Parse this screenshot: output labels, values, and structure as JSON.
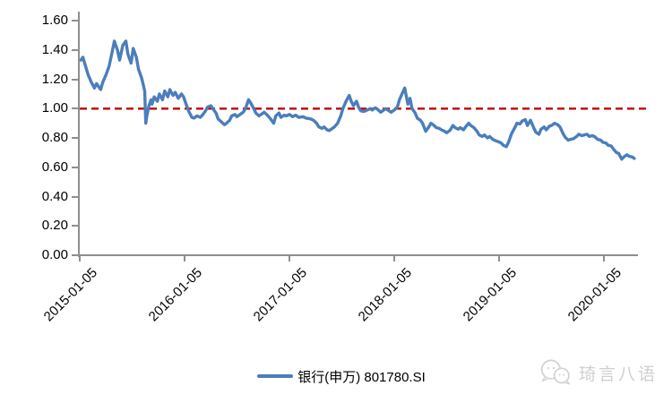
{
  "page": {
    "background": "#ffffff"
  },
  "chart_data": {
    "type": "line",
    "title": "",
    "xlabel": "",
    "ylabel": "",
    "ylim": [
      0.0,
      1.6
    ],
    "xlim_years_from_2015_01_05": [
      0.0,
      5.32
    ],
    "grid": "off",
    "legend_position": "bottom-center",
    "axis_color": "#8f8f8f",
    "y_axis": {
      "ticks": [
        {
          "label": "1.60",
          "value": 1.6
        },
        {
          "label": "1.40",
          "value": 1.4
        },
        {
          "label": "1.20",
          "value": 1.2
        },
        {
          "label": "1.00",
          "value": 1.0
        },
        {
          "label": "0.80",
          "value": 0.8
        },
        {
          "label": "0.60",
          "value": 0.6
        },
        {
          "label": "0.40",
          "value": 0.4
        },
        {
          "label": "0.20",
          "value": 0.2
        },
        {
          "label": "0.00",
          "value": 0.0
        }
      ]
    },
    "x_axis": {
      "ticks": [
        {
          "label": "2015-01-05",
          "t": 0
        },
        {
          "label": "2016-01-05",
          "t": 1
        },
        {
          "label": "2017-01-05",
          "t": 2
        },
        {
          "label": "2018-01-05",
          "t": 3
        },
        {
          "label": "2019-01-05",
          "t": 4
        },
        {
          "label": "2020-01-05",
          "t": 5
        }
      ]
    },
    "reference_line": {
      "value": 1.0,
      "color": "#c00000",
      "style": "dashed"
    },
    "series": [
      {
        "name": "银行(申万) 801780.SI",
        "color": "#4a7ebc",
        "points": [
          [
            0.01,
            1.33
          ],
          [
            0.03,
            1.35
          ],
          [
            0.08,
            1.23
          ],
          [
            0.11,
            1.18
          ],
          [
            0.14,
            1.14
          ],
          [
            0.16,
            1.17
          ],
          [
            0.2,
            1.13
          ],
          [
            0.22,
            1.18
          ],
          [
            0.25,
            1.23
          ],
          [
            0.28,
            1.29
          ],
          [
            0.31,
            1.39
          ],
          [
            0.33,
            1.46
          ],
          [
            0.36,
            1.4
          ],
          [
            0.38,
            1.33
          ],
          [
            0.41,
            1.43
          ],
          [
            0.44,
            1.46
          ],
          [
            0.46,
            1.37
          ],
          [
            0.49,
            1.31
          ],
          [
            0.51,
            1.41
          ],
          [
            0.54,
            1.35
          ],
          [
            0.56,
            1.27
          ],
          [
            0.59,
            1.21
          ],
          [
            0.61,
            1.15
          ],
          [
            0.62,
            1.12
          ],
          [
            0.63,
            0.9
          ],
          [
            0.64,
            0.95
          ],
          [
            0.66,
            1.02
          ],
          [
            0.68,
            1.06
          ],
          [
            0.69,
            1.03
          ],
          [
            0.71,
            1.08
          ],
          [
            0.74,
            1.05
          ],
          [
            0.76,
            1.1
          ],
          [
            0.79,
            1.06
          ],
          [
            0.81,
            1.12
          ],
          [
            0.84,
            1.08
          ],
          [
            0.86,
            1.13
          ],
          [
            0.89,
            1.09
          ],
          [
            0.91,
            1.11
          ],
          [
            0.94,
            1.07
          ],
          [
            0.97,
            1.1
          ],
          [
            0.99,
            1.08
          ],
          [
            1.02,
            1.02
          ],
          [
            1.04,
            0.98
          ],
          [
            1.07,
            0.94
          ],
          [
            1.09,
            0.935
          ],
          [
            1.12,
            0.95
          ],
          [
            1.15,
            0.94
          ],
          [
            1.17,
            0.955
          ],
          [
            1.2,
            0.985
          ],
          [
            1.22,
            1.01
          ],
          [
            1.25,
            1.02
          ],
          [
            1.27,
            1.0
          ],
          [
            1.3,
            0.97
          ],
          [
            1.32,
            0.93
          ],
          [
            1.35,
            0.91
          ],
          [
            1.38,
            0.89
          ],
          [
            1.4,
            0.9
          ],
          [
            1.43,
            0.92
          ],
          [
            1.45,
            0.95
          ],
          [
            1.48,
            0.96
          ],
          [
            1.5,
            0.945
          ],
          [
            1.53,
            0.96
          ],
          [
            1.56,
            0.975
          ],
          [
            1.58,
            1.0
          ],
          [
            1.61,
            1.06
          ],
          [
            1.63,
            1.04
          ],
          [
            1.66,
            1.0
          ],
          [
            1.68,
            0.97
          ],
          [
            1.71,
            0.95
          ],
          [
            1.74,
            0.965
          ],
          [
            1.76,
            0.975
          ],
          [
            1.79,
            0.955
          ],
          [
            1.82,
            0.93
          ],
          [
            1.85,
            0.9
          ],
          [
            1.87,
            0.95
          ],
          [
            1.9,
            0.97
          ],
          [
            1.92,
            0.94
          ],
          [
            1.95,
            0.955
          ],
          [
            1.97,
            0.95
          ],
          [
            2.0,
            0.96
          ],
          [
            2.03,
            0.945
          ],
          [
            2.06,
            0.955
          ],
          [
            2.09,
            0.94
          ],
          [
            2.13,
            0.945
          ],
          [
            2.16,
            0.935
          ],
          [
            2.2,
            0.93
          ],
          [
            2.23,
            0.92
          ],
          [
            2.26,
            0.9
          ],
          [
            2.28,
            0.875
          ],
          [
            2.31,
            0.865
          ],
          [
            2.33,
            0.875
          ],
          [
            2.36,
            0.855
          ],
          [
            2.38,
            0.85
          ],
          [
            2.4,
            0.86
          ],
          [
            2.43,
            0.875
          ],
          [
            2.46,
            0.9
          ],
          [
            2.49,
            0.95
          ],
          [
            2.51,
            1.0
          ],
          [
            2.54,
            1.05
          ],
          [
            2.57,
            1.09
          ],
          [
            2.59,
            1.05
          ],
          [
            2.61,
            1.02
          ],
          [
            2.64,
            1.05
          ],
          [
            2.66,
            1.01
          ],
          [
            2.68,
            0.985
          ],
          [
            2.71,
            0.98
          ],
          [
            2.74,
            0.99
          ],
          [
            2.77,
            1.0
          ],
          [
            2.79,
            0.99
          ],
          [
            2.82,
            1.005
          ],
          [
            2.85,
            0.99
          ],
          [
            2.87,
            0.975
          ],
          [
            2.9,
            0.99
          ],
          [
            2.92,
            1.0
          ],
          [
            2.95,
            0.985
          ],
          [
            2.97,
            0.975
          ],
          [
            3.0,
            0.99
          ],
          [
            3.03,
            1.01
          ],
          [
            3.05,
            1.06
          ],
          [
            3.08,
            1.11
          ],
          [
            3.1,
            1.14
          ],
          [
            3.13,
            1.03
          ],
          [
            3.15,
            1.07
          ],
          [
            3.17,
            1.0
          ],
          [
            3.2,
            0.97
          ],
          [
            3.22,
            0.935
          ],
          [
            3.25,
            0.92
          ],
          [
            3.27,
            0.9
          ],
          [
            3.3,
            0.845
          ],
          [
            3.33,
            0.875
          ],
          [
            3.35,
            0.9
          ],
          [
            3.38,
            0.885
          ],
          [
            3.4,
            0.87
          ],
          [
            3.43,
            0.865
          ],
          [
            3.45,
            0.855
          ],
          [
            3.48,
            0.845
          ],
          [
            3.5,
            0.835
          ],
          [
            3.53,
            0.85
          ],
          [
            3.56,
            0.885
          ],
          [
            3.58,
            0.87
          ],
          [
            3.61,
            0.86
          ],
          [
            3.63,
            0.87
          ],
          [
            3.66,
            0.855
          ],
          [
            3.68,
            0.875
          ],
          [
            3.71,
            0.9
          ],
          [
            3.73,
            0.885
          ],
          [
            3.76,
            0.87
          ],
          [
            3.79,
            0.845
          ],
          [
            3.81,
            0.82
          ],
          [
            3.84,
            0.81
          ],
          [
            3.86,
            0.82
          ],
          [
            3.89,
            0.8
          ],
          [
            3.91,
            0.81
          ],
          [
            3.94,
            0.79
          ],
          [
            3.97,
            0.78
          ],
          [
            3.99,
            0.775
          ],
          [
            4.02,
            0.765
          ],
          [
            4.04,
            0.75
          ],
          [
            4.07,
            0.74
          ],
          [
            4.09,
            0.77
          ],
          [
            4.12,
            0.83
          ],
          [
            4.15,
            0.87
          ],
          [
            4.17,
            0.9
          ],
          [
            4.2,
            0.895
          ],
          [
            4.22,
            0.915
          ],
          [
            4.25,
            0.925
          ],
          [
            4.27,
            0.885
          ],
          [
            4.3,
            0.92
          ],
          [
            4.33,
            0.87
          ],
          [
            4.35,
            0.84
          ],
          [
            4.38,
            0.825
          ],
          [
            4.4,
            0.86
          ],
          [
            4.43,
            0.875
          ],
          [
            4.45,
            0.855
          ],
          [
            4.48,
            0.88
          ],
          [
            4.5,
            0.885
          ],
          [
            4.53,
            0.9
          ],
          [
            4.56,
            0.89
          ],
          [
            4.58,
            0.875
          ],
          [
            4.61,
            0.83
          ],
          [
            4.63,
            0.805
          ],
          [
            4.66,
            0.785
          ],
          [
            4.68,
            0.79
          ],
          [
            4.71,
            0.795
          ],
          [
            4.74,
            0.81
          ],
          [
            4.76,
            0.825
          ],
          [
            4.79,
            0.815
          ],
          [
            4.81,
            0.82
          ],
          [
            4.84,
            0.825
          ],
          [
            4.86,
            0.81
          ],
          [
            4.89,
            0.815
          ],
          [
            4.91,
            0.81
          ],
          [
            4.94,
            0.79
          ],
          [
            4.97,
            0.785
          ],
          [
            4.99,
            0.77
          ],
          [
            5.02,
            0.765
          ],
          [
            5.04,
            0.75
          ],
          [
            5.07,
            0.745
          ],
          [
            5.09,
            0.725
          ],
          [
            5.12,
            0.7
          ],
          [
            5.14,
            0.695
          ],
          [
            5.17,
            0.655
          ],
          [
            5.19,
            0.67
          ],
          [
            5.22,
            0.685
          ],
          [
            5.24,
            0.675
          ],
          [
            5.27,
            0.67
          ],
          [
            5.29,
            0.66
          ]
        ]
      }
    ]
  },
  "legend": {
    "label": "银行(申万) 801780.SI"
  },
  "watermark": {
    "text": "琦言八语",
    "icon": "chat-bubbles-logo",
    "color": "#cfcfcf"
  }
}
